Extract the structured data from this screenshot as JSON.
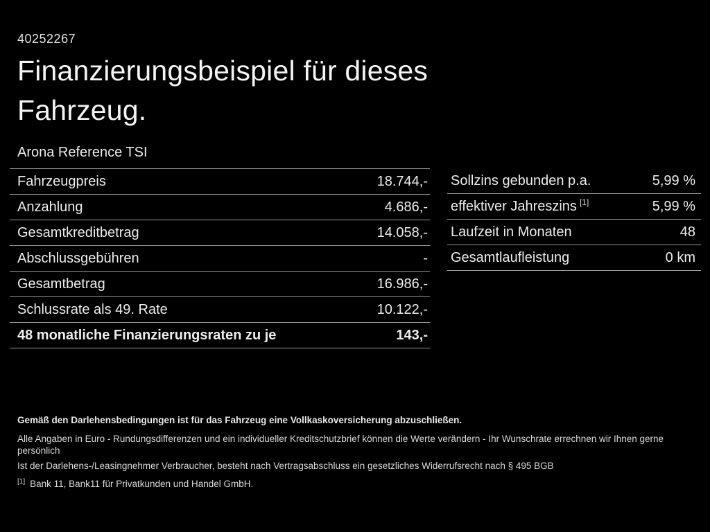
{
  "meta": {
    "doc_number": "40252267"
  },
  "header": {
    "title_line1": "Finanzierungsbeispiel für dieses",
    "title_line2": "Fahrzeug.",
    "subtitle": "Arona Reference TSI"
  },
  "tables": {
    "left": {
      "rows": [
        {
          "label": "Fahrzeugpreis",
          "value": "18.744,-"
        },
        {
          "label": "Anzahlung",
          "value": "4.686,-"
        },
        {
          "label": "Gesamtkreditbetrag",
          "value": "14.058,-"
        },
        {
          "label": "Abschlussgebühren",
          "value": "-"
        },
        {
          "label": "Gesamtbetrag",
          "value": "16.986,-"
        },
        {
          "label": "Schlussrate als 49. Rate",
          "value": "10.122,-"
        },
        {
          "label": "48 monatliche Finanzierungsraten zu je",
          "value": "143,-"
        }
      ]
    },
    "right": {
      "rows": [
        {
          "label": "Sollzins gebunden p.a.",
          "value": "5,99 %"
        },
        {
          "label": "effektiver Jahreszins",
          "sup": "[1]",
          "value": "5,99 %"
        },
        {
          "label": "Laufzeit in Monaten",
          "value": "48"
        },
        {
          "label": "Gesamtlaufleistung",
          "value": "0 km"
        }
      ]
    }
  },
  "footnotes": {
    "insurance_bold": "Gemäß den Darlehensbedingungen ist für das Fahrzeug eine Vollkaskoversicherung abzuschließen.",
    "disclaimer1": "Alle Angaben in Euro - Rundungsdifferenzen und ein individueller Kreditschutzbrief können die Werte verändern - Ihr Wunschrate errechnen wir Ihnen gerne persönlich",
    "disclaimer2": "Ist der Darlehens-/Leasingnehmer Verbraucher, besteht nach Vertragsabschluss ein gesetzliches Widerrufsrecht nach § 495 BGB",
    "bank_ref_sup": "[1]",
    "bank_ref": "Bank 11, Bank11 für Privatkunden und Handel GmbH."
  },
  "colors": {
    "background": "#000000",
    "text": "#ececec",
    "divider": "#9b9b9b"
  }
}
